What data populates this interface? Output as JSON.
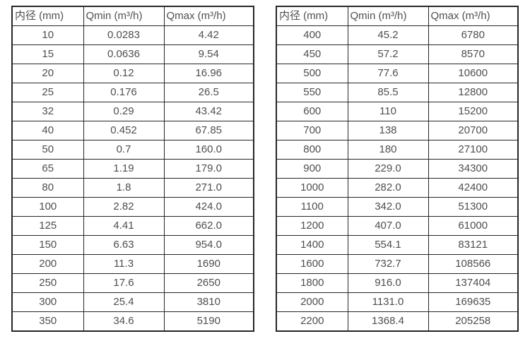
{
  "colors": {
    "background": "#ffffff",
    "border": "#262626",
    "text": "#4f4f4f"
  },
  "tables": [
    {
      "name": "flow-spec-table-small-diameters",
      "headers": [
        "内径 (mm)",
        "Qmin (m³/h)",
        "Qmax (m³/h)"
      ],
      "rows": [
        [
          "10",
          "0.0283",
          "4.42"
        ],
        [
          "15",
          "0.0636",
          "9.54"
        ],
        [
          "20",
          "0.12",
          "16.96"
        ],
        [
          "25",
          "0.176",
          "26.5"
        ],
        [
          "32",
          "0.29",
          "43.42"
        ],
        [
          "40",
          "0.452",
          "67.85"
        ],
        [
          "50",
          "0.7",
          "160.0"
        ],
        [
          "65",
          "1.19",
          "179.0"
        ],
        [
          "80",
          "1.8",
          "271.0"
        ],
        [
          "100",
          "2.82",
          "424.0"
        ],
        [
          "125",
          "4.41",
          "662.0"
        ],
        [
          "150",
          "6.63",
          "954.0"
        ],
        [
          "200",
          "11.3",
          "1690"
        ],
        [
          "250",
          "17.6",
          "2650"
        ],
        [
          "300",
          "25.4",
          "3810"
        ],
        [
          "350",
          "34.6",
          "5190"
        ]
      ]
    },
    {
      "name": "flow-spec-table-large-diameters",
      "headers": [
        "内径 (mm)",
        "Qmin (m³/h)",
        "Qmax (m³/h)"
      ],
      "rows": [
        [
          "400",
          "45.2",
          "6780"
        ],
        [
          "450",
          "57.2",
          "8570"
        ],
        [
          "500",
          "77.6",
          "10600"
        ],
        [
          "550",
          "85.5",
          "12800"
        ],
        [
          "600",
          "110",
          "15200"
        ],
        [
          "700",
          "138",
          "20700"
        ],
        [
          "800",
          "180",
          "27100"
        ],
        [
          "900",
          "229.0",
          "34300"
        ],
        [
          "1000",
          "282.0",
          "42400"
        ],
        [
          "1100",
          "342.0",
          "51300"
        ],
        [
          "1200",
          "407.0",
          "61000"
        ],
        [
          "1400",
          "554.1",
          "83121"
        ],
        [
          "1600",
          "732.7",
          "108566"
        ],
        [
          "1800",
          "916.0",
          "137404"
        ],
        [
          "2000",
          "1131.0",
          "169635"
        ],
        [
          "2200",
          "1368.4",
          "205258"
        ]
      ]
    }
  ]
}
